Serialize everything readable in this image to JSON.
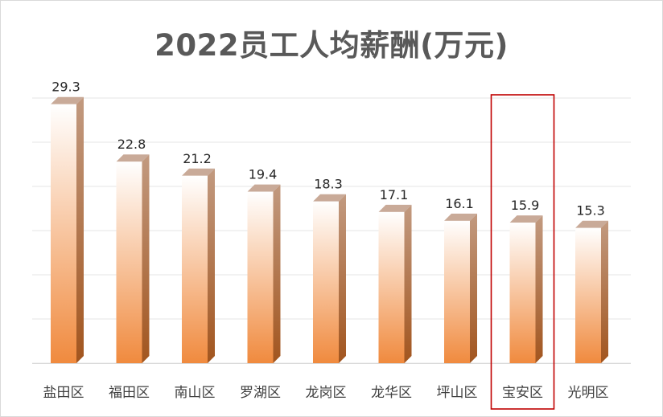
{
  "chart_data": {
    "type": "bar",
    "title": "2022员工人均薪酬(万元)",
    "categories": [
      "盐田区",
      "福田区",
      "南山区",
      "罗湖区",
      "龙岗区",
      "龙华区",
      "坪山区",
      "宝安区",
      "光明区"
    ],
    "values": [
      29.3,
      22.8,
      21.2,
      19.4,
      18.3,
      17.1,
      16.1,
      15.9,
      15.3
    ],
    "ylim": [
      0,
      30
    ],
    "grid": true,
    "xlabel": "",
    "ylabel": "",
    "highlighted_category": "宝安区",
    "colors": {
      "bar_top": "#ffffff",
      "bar_bottom": "#f08a3e",
      "bar_side": "#a9652f",
      "bar_cap": "#c9aa98",
      "highlight_box": "#c00000",
      "grid": "#e6e6e6"
    }
  }
}
